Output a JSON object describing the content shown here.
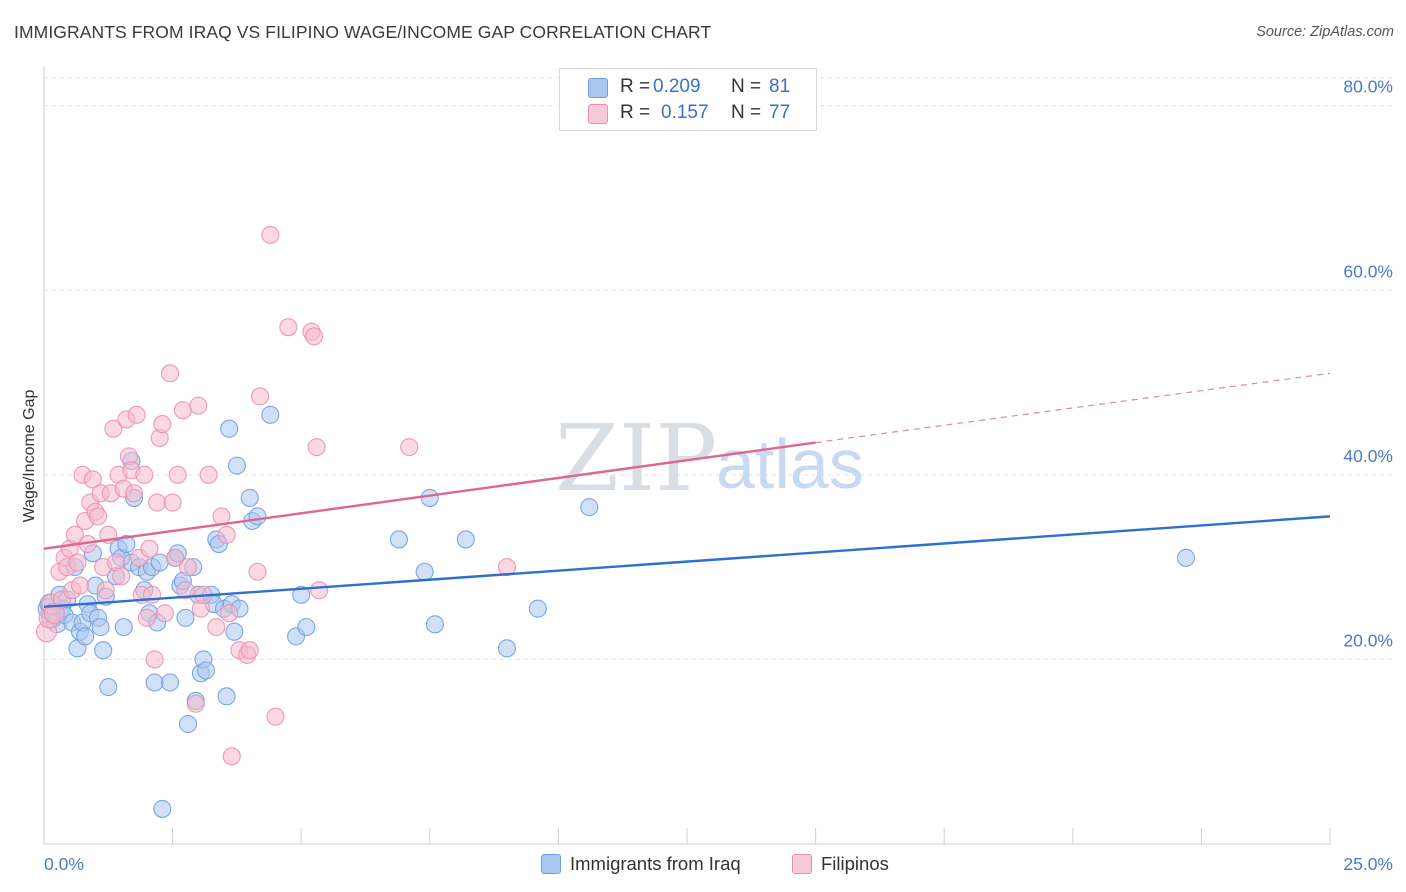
{
  "header": {
    "title": "IMMIGRANTS FROM IRAQ VS FILIPINO WAGE/INCOME GAP CORRELATION CHART",
    "source": "Source: ZipAtlas.com"
  },
  "watermark": {
    "zip": "ZIP",
    "atlas": "atlas"
  },
  "legend": {
    "rows": [
      {
        "r_label": "R =",
        "r_value": "0.209",
        "n_label": "N =",
        "n_value": "81",
        "color": "#a9c7ef"
      },
      {
        "r_label": "R =",
        "r_value": "0.157",
        "n_label": "N =",
        "n_value": "77",
        "color": "#f6b9cd"
      }
    ]
  },
  "bottom_legend": [
    {
      "label": "Immigrants from Iraq",
      "color": "#a9c7ef"
    },
    {
      "label": "Filipinos",
      "color": "#f6b9cd"
    }
  ],
  "chart_data": {
    "type": "scatter",
    "title": "IMMIGRANTS FROM IRAQ VS FILIPINO WAGE/INCOME GAP CORRELATION CHART",
    "xlabel": "",
    "ylabel": "Wage/Income Gap",
    "xlim": [
      0,
      25
    ],
    "ylim": [
      0,
      83
    ],
    "x_tick_labels": [
      "0.0%",
      "25.0%"
    ],
    "y_ticks": [
      {
        "value": 20,
        "label": "20.0%"
      },
      {
        "value": 40,
        "label": "40.0%"
      },
      {
        "value": 60,
        "label": "60.0%"
      },
      {
        "value": 80,
        "label": "80.0%"
      }
    ],
    "grid": true,
    "legend_position": "top-center",
    "series": [
      {
        "name": "Immigrants from Iraq",
        "color": "#6f9ee0",
        "fill": "#a9c7ef",
        "trend": {
          "x": [
            0,
            25
          ],
          "y": [
            25.7,
            35.5
          ],
          "color": "#2f6fcf"
        },
        "points": [
          [
            0.08,
            25.5
          ],
          [
            0.12,
            26
          ],
          [
            0.15,
            24.5
          ],
          [
            0.2,
            25
          ],
          [
            0.25,
            24
          ],
          [
            0.3,
            27
          ],
          [
            0.35,
            25.5
          ],
          [
            0.4,
            24.8
          ],
          [
            0.45,
            26.5
          ],
          [
            0.55,
            24
          ],
          [
            0.6,
            30
          ],
          [
            0.65,
            21.2
          ],
          [
            0.7,
            23
          ],
          [
            0.75,
            24
          ],
          [
            0.8,
            22.5
          ],
          [
            0.85,
            26
          ],
          [
            0.9,
            25
          ],
          [
            0.95,
            31.5
          ],
          [
            1.0,
            28
          ],
          [
            1.05,
            24.5
          ],
          [
            1.1,
            23.5
          ],
          [
            1.15,
            21
          ],
          [
            1.2,
            26.8
          ],
          [
            1.25,
            17
          ],
          [
            1.4,
            29
          ],
          [
            1.45,
            32
          ],
          [
            1.5,
            31
          ],
          [
            1.55,
            23.5
          ],
          [
            1.6,
            32.5
          ],
          [
            1.7,
            30.5
          ],
          [
            1.7,
            41.5
          ],
          [
            1.75,
            37.5
          ],
          [
            1.85,
            30
          ],
          [
            1.95,
            27.5
          ],
          [
            2.0,
            29.5
          ],
          [
            2.05,
            25
          ],
          [
            2.1,
            30
          ],
          [
            2.15,
            17.5
          ],
          [
            2.2,
            24
          ],
          [
            2.25,
            30.5
          ],
          [
            2.3,
            3.8
          ],
          [
            2.45,
            17.5
          ],
          [
            2.55,
            31
          ],
          [
            2.6,
            31.5
          ],
          [
            2.65,
            28
          ],
          [
            2.7,
            28.5
          ],
          [
            2.75,
            24.5
          ],
          [
            2.8,
            13
          ],
          [
            2.9,
            30
          ],
          [
            2.95,
            15.5
          ],
          [
            3.0,
            27
          ],
          [
            3.05,
            18.5
          ],
          [
            3.1,
            20
          ],
          [
            3.15,
            18.8
          ],
          [
            3.25,
            27
          ],
          [
            3.3,
            26
          ],
          [
            3.35,
            33
          ],
          [
            3.4,
            32.5
          ],
          [
            3.5,
            25.5
          ],
          [
            3.55,
            16
          ],
          [
            3.6,
            45
          ],
          [
            3.65,
            26
          ],
          [
            3.7,
            23
          ],
          [
            3.75,
            41
          ],
          [
            3.8,
            25.5
          ],
          [
            4.0,
            37.5
          ],
          [
            4.05,
            35
          ],
          [
            4.15,
            35.5
          ],
          [
            4.4,
            46.5
          ],
          [
            4.9,
            22.5
          ],
          [
            5.0,
            27
          ],
          [
            5.1,
            23.5
          ],
          [
            6.9,
            33
          ],
          [
            7.4,
            29.5
          ],
          [
            7.5,
            37.5
          ],
          [
            7.6,
            23.8
          ],
          [
            8.2,
            33
          ],
          [
            9.0,
            21.2
          ],
          [
            9.6,
            25.5
          ],
          [
            10.6,
            36.5
          ],
          [
            22.2,
            31
          ]
        ]
      },
      {
        "name": "Filipinos",
        "color": "#ec8fae",
        "fill": "#f6b9cd",
        "trend": {
          "x": [
            0,
            15
          ],
          "y": [
            32,
            43.5
          ],
          "color": "#e0658f",
          "dashed_extension": {
            "x": [
              15,
              25
            ],
            "y": [
              43.5,
              51
            ]
          }
        },
        "points": [
          [
            0.05,
            23
          ],
          [
            0.1,
            24.5
          ],
          [
            0.15,
            26
          ],
          [
            0.2,
            25
          ],
          [
            0.3,
            29.5
          ],
          [
            0.35,
            26.5
          ],
          [
            0.4,
            31
          ],
          [
            0.45,
            30
          ],
          [
            0.5,
            32
          ],
          [
            0.55,
            27.5
          ],
          [
            0.6,
            33.5
          ],
          [
            0.65,
            30.5
          ],
          [
            0.7,
            28
          ],
          [
            0.75,
            40
          ],
          [
            0.8,
            35
          ],
          [
            0.85,
            32.5
          ],
          [
            0.9,
            37
          ],
          [
            0.95,
            39.5
          ],
          [
            1.0,
            36
          ],
          [
            1.05,
            35.5
          ],
          [
            1.1,
            38
          ],
          [
            1.15,
            30
          ],
          [
            1.2,
            27.5
          ],
          [
            1.25,
            33.5
          ],
          [
            1.3,
            38
          ],
          [
            1.35,
            45
          ],
          [
            1.4,
            30.5
          ],
          [
            1.45,
            40
          ],
          [
            1.5,
            29
          ],
          [
            1.55,
            38.5
          ],
          [
            1.6,
            46
          ],
          [
            1.65,
            42
          ],
          [
            1.7,
            40.5
          ],
          [
            1.75,
            38
          ],
          [
            1.8,
            46.5
          ],
          [
            1.85,
            31
          ],
          [
            1.9,
            27
          ],
          [
            1.95,
            40
          ],
          [
            2.0,
            24.5
          ],
          [
            2.05,
            32
          ],
          [
            2.1,
            27
          ],
          [
            2.15,
            20
          ],
          [
            2.2,
            37
          ],
          [
            2.25,
            44
          ],
          [
            2.3,
            45.5
          ],
          [
            2.35,
            25
          ],
          [
            2.45,
            51
          ],
          [
            2.5,
            37
          ],
          [
            2.55,
            31
          ],
          [
            2.6,
            40
          ],
          [
            2.7,
            47
          ],
          [
            2.75,
            27.5
          ],
          [
            2.8,
            30
          ],
          [
            2.95,
            15.2
          ],
          [
            3.0,
            47.5
          ],
          [
            3.05,
            25.5
          ],
          [
            3.1,
            27
          ],
          [
            3.2,
            40
          ],
          [
            3.35,
            23.5
          ],
          [
            3.45,
            35.5
          ],
          [
            3.55,
            33.5
          ],
          [
            3.6,
            25
          ],
          [
            3.65,
            9.5
          ],
          [
            3.8,
            21
          ],
          [
            3.95,
            20.5
          ],
          [
            4.0,
            21
          ],
          [
            4.15,
            29.5
          ],
          [
            4.2,
            48.5
          ],
          [
            4.4,
            66
          ],
          [
            4.5,
            13.8
          ],
          [
            4.75,
            56
          ],
          [
            5.2,
            55.5
          ],
          [
            5.25,
            55
          ],
          [
            5.3,
            43
          ],
          [
            5.35,
            27.5
          ],
          [
            7.1,
            43
          ],
          [
            9.0,
            30
          ]
        ]
      }
    ]
  }
}
